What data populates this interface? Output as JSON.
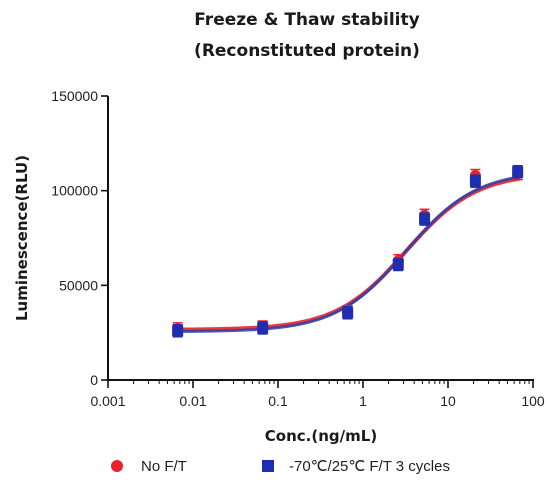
{
  "chart_data": {
    "type": "scatter",
    "title_lines": [
      "Freeze & Thaw stability",
      "(Reconstituted protein)"
    ],
    "xlabel": "Conc.(ng/mL)",
    "ylabel": "Luminescence(RLU)",
    "x_scale": "log",
    "xlim": [
      0.001,
      100
    ],
    "ylim": [
      0,
      150000
    ],
    "x_ticks": [
      0.001,
      0.01,
      0.1,
      1,
      10,
      100
    ],
    "x_tick_labels": [
      "0.001",
      "0.01",
      "0.1",
      "1",
      "10",
      "100"
    ],
    "y_ticks": [
      0,
      50000,
      100000,
      150000
    ],
    "y_tick_labels": [
      "0",
      "50000",
      "100000",
      "150000"
    ],
    "grid": false,
    "legend_position": "bottom",
    "series": [
      {
        "name": "No F/T",
        "marker": "circle",
        "color": "#e8212b",
        "fit_color": "#e8212b",
        "x": [
          0.0066,
          0.066,
          0.66,
          2.6,
          5.3,
          21,
          66
        ],
        "y": [
          27000,
          28000,
          36000,
          63000,
          87000,
          108000,
          109000
        ]
      },
      {
        "name": "-70℃/25℃  F/T 3 cycles",
        "marker": "square",
        "color": "#1f2eb0",
        "fit_color": "#2b3ea8",
        "x": [
          0.0066,
          0.066,
          0.66,
          2.6,
          5.3,
          21,
          66
        ],
        "y": [
          26000,
          27500,
          35500,
          61000,
          85000,
          105000,
          110000
        ]
      }
    ]
  }
}
